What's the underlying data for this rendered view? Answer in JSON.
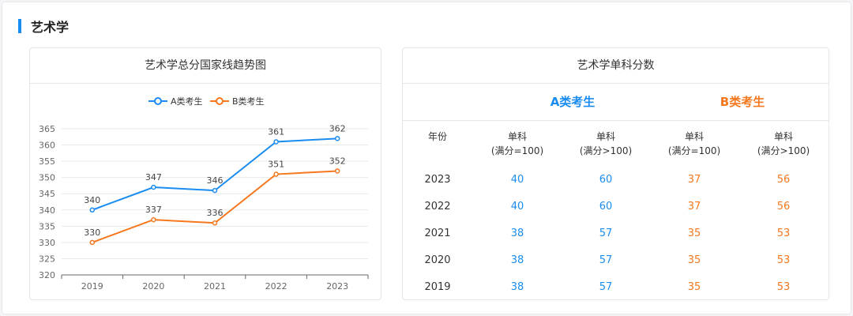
{
  "section": {
    "title": "艺术学"
  },
  "colors": {
    "accent": "#1a8cf0",
    "a": "#1a8cf0",
    "b": "#f5781e"
  },
  "chart_card": {
    "title": "艺术学总分国家线趋势图"
  },
  "chart_data": {
    "type": "line",
    "categories": [
      "2019",
      "2020",
      "2021",
      "2022",
      "2023"
    ],
    "series": [
      {
        "name": "A类考生",
        "values": [
          340,
          347,
          346,
          361,
          362
        ],
        "color": "#1a8cf0"
      },
      {
        "name": "B类考生",
        "values": [
          330,
          337,
          336,
          351,
          352
        ],
        "color": "#f5781e"
      }
    ],
    "title": "艺术学总分国家线趋势图",
    "xlabel": "",
    "ylabel": "",
    "ylim": [
      320,
      365
    ],
    "yticks": [
      320,
      325,
      330,
      335,
      340,
      345,
      350,
      355,
      360,
      365
    ],
    "grid": true,
    "legend": "top-center"
  },
  "table_card": {
    "title": "艺术学单科分数",
    "group_a": "A类考生",
    "group_b": "B类考生",
    "headers": {
      "year": "年份",
      "a1_line1": "单科",
      "a1_line2": "(满分=100)",
      "a2_line1": "单科",
      "a2_line2": "(满分>100)",
      "b1_line1": "单科",
      "b1_line2": "(满分=100)",
      "b2_line1": "单科",
      "b2_line2": "(满分>100)"
    },
    "rows": [
      {
        "year": "2023",
        "a1": "40",
        "a2": "60",
        "b1": "37",
        "b2": "56"
      },
      {
        "year": "2022",
        "a1": "40",
        "a2": "60",
        "b1": "37",
        "b2": "56"
      },
      {
        "year": "2021",
        "a1": "38",
        "a2": "57",
        "b1": "35",
        "b2": "53"
      },
      {
        "year": "2020",
        "a1": "38",
        "a2": "57",
        "b1": "35",
        "b2": "53"
      },
      {
        "year": "2019",
        "a1": "38",
        "a2": "57",
        "b1": "35",
        "b2": "53"
      }
    ]
  }
}
